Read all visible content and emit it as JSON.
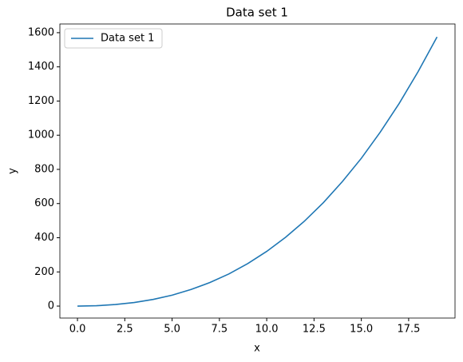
{
  "chart_data": {
    "type": "line",
    "title": "Data set 1",
    "xlabel": "x",
    "ylabel": "y",
    "x": [
      0,
      1,
      2,
      3,
      4,
      5,
      6,
      7,
      8,
      9,
      10,
      11,
      12,
      13,
      14,
      15,
      16,
      17,
      18,
      19
    ],
    "series": [
      {
        "name": "Data set 1",
        "color": "#1f77b4",
        "values": [
          0,
          2,
          9,
          21,
          39,
          64,
          97,
          138,
          188,
          249,
          320,
          403,
          498,
          606,
          729,
          865,
          1018,
          1186,
          1372,
          1575
        ]
      }
    ],
    "xlim": [
      -0.93,
      19.95
    ],
    "ylim": [
      -70,
      1651
    ],
    "xticks": [
      {
        "value": 0,
        "label": "0.0"
      },
      {
        "value": 2.5,
        "label": "2.5"
      },
      {
        "value": 5,
        "label": "5.0"
      },
      {
        "value": 7.5,
        "label": "7.5"
      },
      {
        "value": 10,
        "label": "10.0"
      },
      {
        "value": 12.5,
        "label": "12.5"
      },
      {
        "value": 15,
        "label": "15.0"
      },
      {
        "value": 17.5,
        "label": "17.5"
      }
    ],
    "yticks": [
      0,
      200,
      400,
      600,
      800,
      1000,
      1200,
      1400,
      1600
    ],
    "legend": "upper left",
    "grid": false
  }
}
